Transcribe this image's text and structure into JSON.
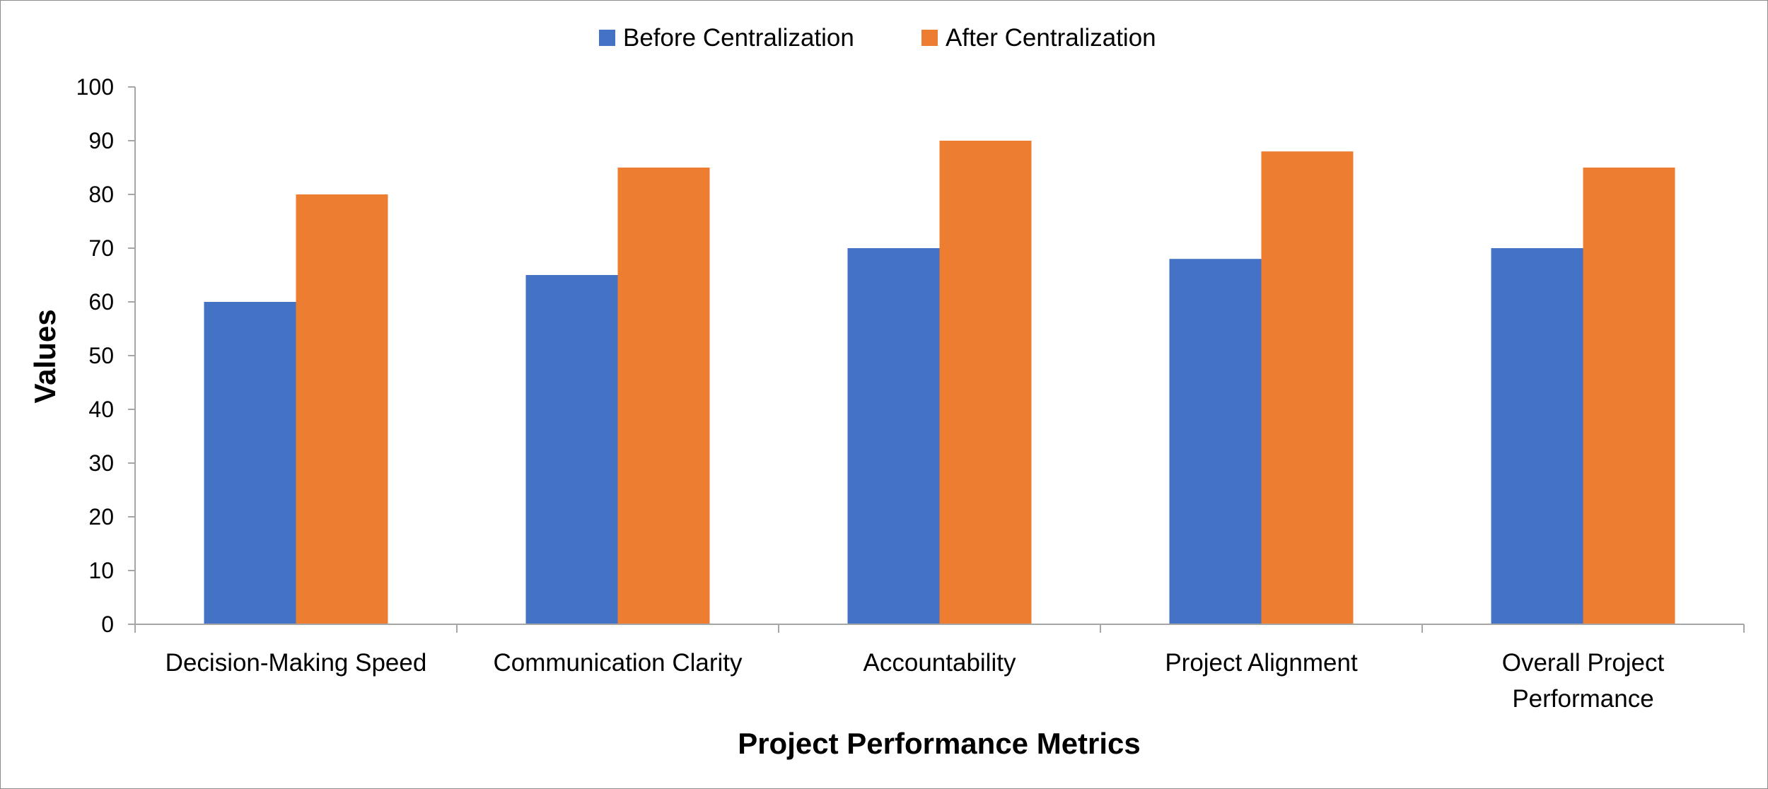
{
  "chart_data": {
    "type": "bar",
    "categories": [
      [
        "Decision-Making Speed"
      ],
      [
        "Communication Clarity"
      ],
      [
        "Accountability"
      ],
      [
        "Project Alignment"
      ],
      [
        "Overall Project",
        "Performance"
      ]
    ],
    "series": [
      {
        "name": "Before Centralization",
        "color": "#4472C4",
        "values": [
          60,
          65,
          70,
          68,
          70
        ]
      },
      {
        "name": "After Centralization",
        "color": "#ED7D31",
        "values": [
          80,
          85,
          90,
          88,
          85
        ]
      }
    ],
    "xlabel": "Project Performance Metrics",
    "ylabel": "Values",
    "ylim": [
      0,
      100
    ],
    "yticks": [
      0,
      10,
      20,
      30,
      40,
      50,
      60,
      70,
      80,
      90,
      100
    ],
    "grid": false,
    "legend_position": "top-center"
  }
}
